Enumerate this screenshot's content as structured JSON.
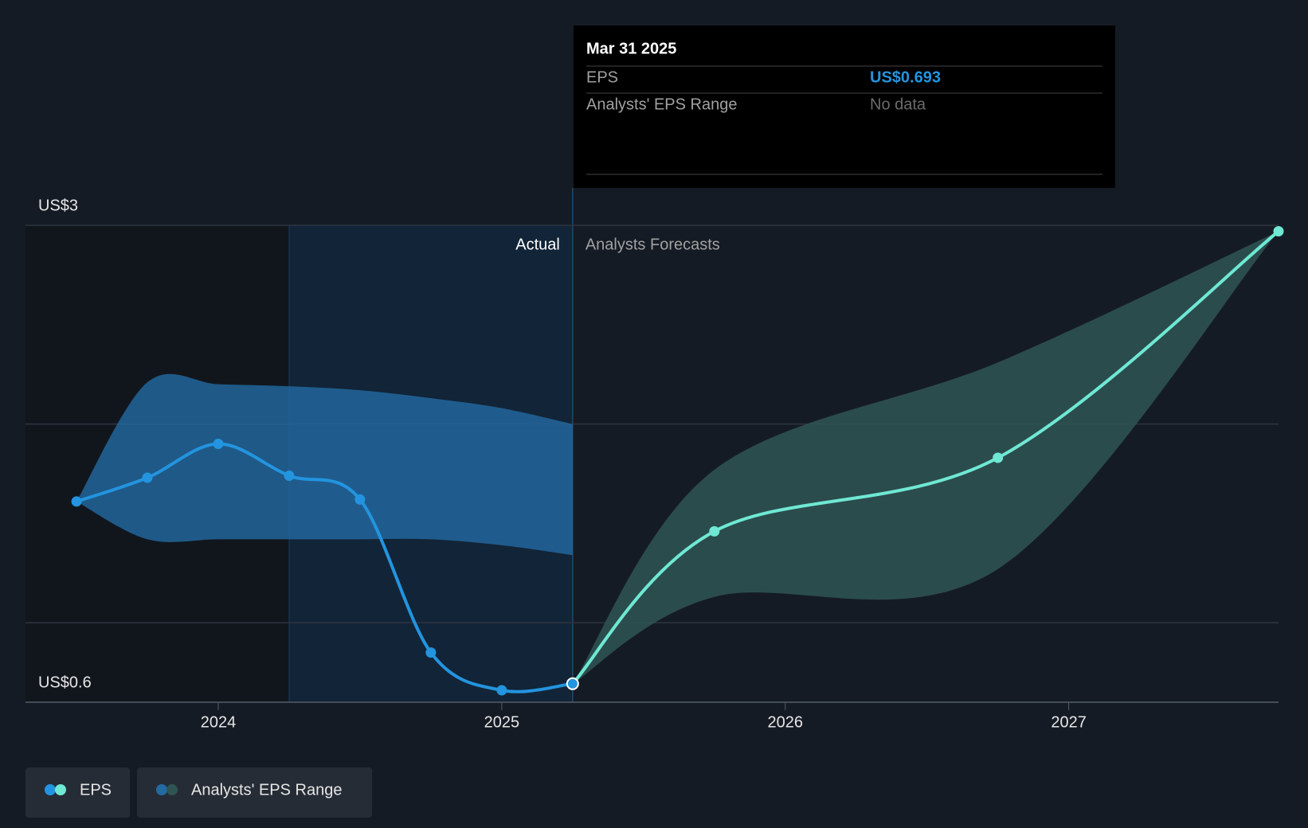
{
  "chart_data": {
    "type": "line",
    "xlim": [
      2023.32,
      2027.74
    ],
    "ylim": [
      0.6,
      3
    ],
    "xticks": [
      2024,
      2025,
      2026,
      2027
    ],
    "yticks": [
      {
        "value": 0.6,
        "label": "US$0.6"
      },
      {
        "value": 1,
        "label": null
      },
      {
        "value": 2,
        "label": null
      },
      {
        "value": 3,
        "label": "US$3"
      }
    ],
    "grid": true,
    "highlight_start": 2024.25,
    "actual_label": "Actual",
    "forecast_label": "Analysts Forecasts",
    "eps": {
      "name": "EPS",
      "color_actual": "#2394df",
      "color_forecast": "#6fe8d4",
      "actual": {
        "x": [
          2023.5,
          2023.75,
          2024,
          2024.25,
          2024.5,
          2024.75,
          2025,
          2025.25
        ],
        "values": [
          1.61,
          1.73,
          1.9,
          1.74,
          1.62,
          0.85,
          0.66,
          0.693
        ]
      },
      "forecast": {
        "x": [
          2025.75,
          2026.75,
          2027.74
        ],
        "values": [
          1.46,
          1.83,
          2.97
        ]
      }
    },
    "range": {
      "name": "Analysts' EPS Range",
      "color_actual": "#236aa3",
      "color_forecast": "#2f5553",
      "actual": {
        "x": [
          2023.5,
          2023.75,
          2024,
          2024.25,
          2024.5,
          2024.75,
          2025,
          2025.25
        ],
        "high": [
          1.61,
          2.21,
          2.2,
          2.19,
          2.17,
          2.13,
          2.08,
          2.0
        ],
        "low": [
          1.61,
          1.42,
          1.42,
          1.42,
          1.42,
          1.42,
          1.39,
          1.34
        ]
      },
      "forecast": {
        "x": [
          2025.75,
          2026.75,
          2027.74
        ],
        "high": [
          1.77,
          2.31,
          2.97
        ],
        "low": [
          1.13,
          1.27,
          2.97
        ]
      }
    },
    "tooltip": {
      "date": "Mar 31 2025",
      "rows": [
        {
          "label": "EPS",
          "value": "US$0.693"
        },
        {
          "label": "Analysts' EPS Range",
          "value": "No data"
        }
      ]
    }
  }
}
